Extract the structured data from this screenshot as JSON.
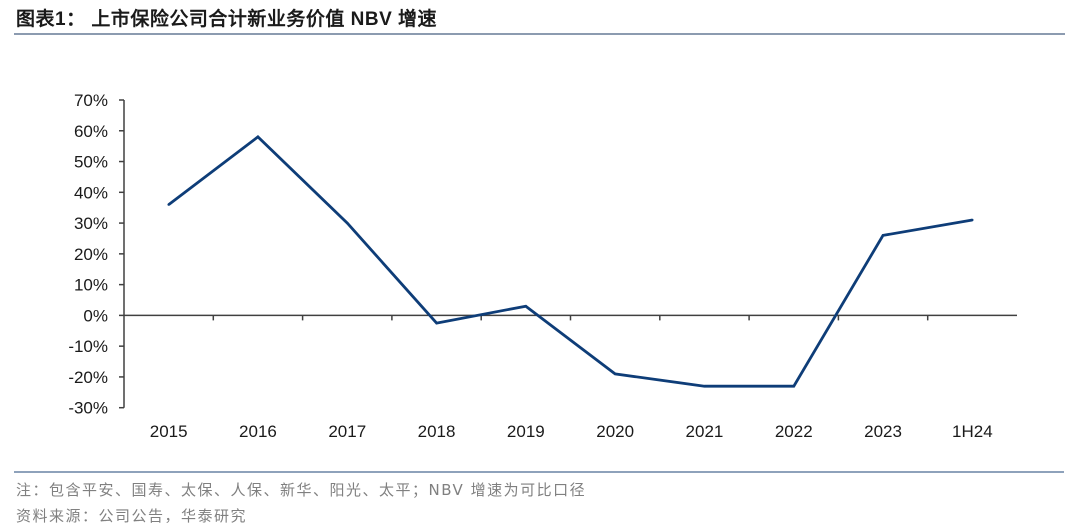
{
  "header": {
    "title": "图表1：  上市保险公司合计新业务价值 NBV 增速"
  },
  "footer": {
    "note": "注：包含平安、国寿、太保、人保、新华、阳光、太平；NBV 增速为可比口径",
    "source": "资料来源：公司公告，华泰研究"
  },
  "colors": {
    "line": "#0e3d78",
    "axis": "#404040",
    "rule": "#8c9bb0"
  },
  "chart_data": {
    "type": "line",
    "title": "上市保险公司合计新业务价值 NBV 增速",
    "xlabel": "",
    "ylabel": "",
    "categories": [
      "2015",
      "2016",
      "2017",
      "2018",
      "2019",
      "2020",
      "2021",
      "2022",
      "2023",
      "1H24"
    ],
    "series": [
      {
        "name": "NBV 增速",
        "values": [
          36,
          58,
          30,
          -2.5,
          3,
          -19,
          -23,
          -23,
          26,
          31
        ]
      }
    ],
    "ylim": [
      -30,
      70
    ],
    "yticks": [
      70,
      60,
      50,
      40,
      30,
      20,
      10,
      0,
      -10,
      -20,
      -30
    ],
    "ytick_labels": [
      "70%",
      "60%",
      "50%",
      "40%",
      "30%",
      "20%",
      "10%",
      "0%",
      "-10%",
      "-20%",
      "-30%"
    ],
    "grid": false,
    "legend": "none"
  }
}
